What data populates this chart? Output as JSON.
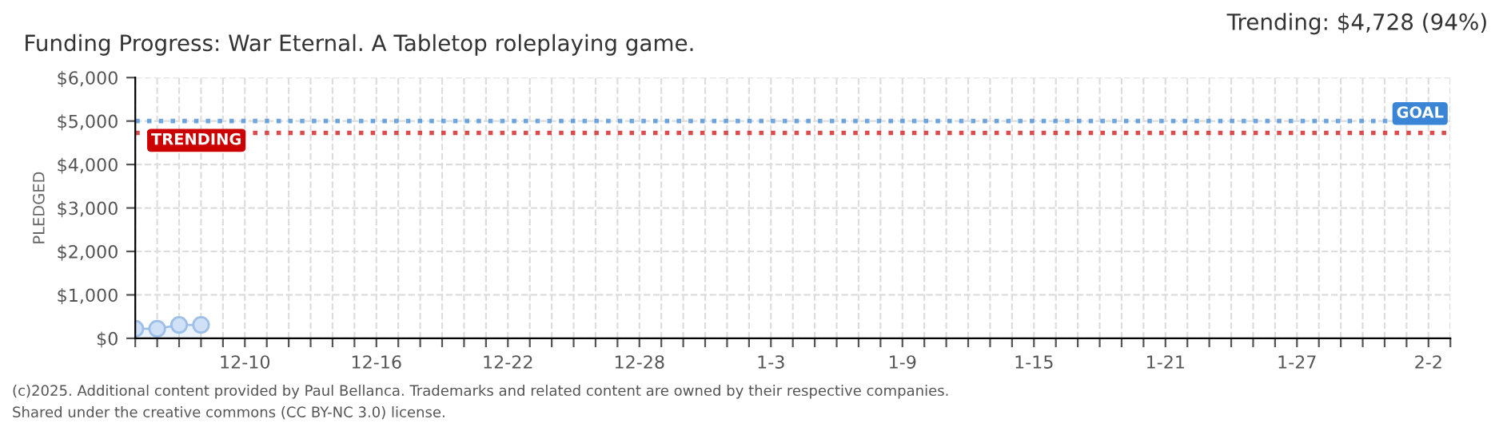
{
  "chart_data": {
    "type": "area",
    "title": "Funding Progress: War Eternal. A Tabletop roleplaying game.",
    "ylabel": "PLEDGED",
    "x": [
      "2024-12-05",
      "2024-12-06",
      "2024-12-07",
      "2024-12-08"
    ],
    "series": [
      {
        "color": "#9dbfe8",
        "values": [
          220,
          220,
          310,
          310
        ]
      }
    ],
    "marker": "circle",
    "xlim": [
      "2024-12-05",
      "2025-02-03"
    ],
    "xticks": [
      {
        "value": "2024-12-05",
        "label": null
      },
      {
        "value": "2024-12-06",
        "label": null
      },
      {
        "value": "2024-12-07",
        "label": null
      },
      {
        "value": "2024-12-08",
        "label": null
      },
      {
        "value": "2024-12-09",
        "label": null
      },
      {
        "value": "2024-12-10",
        "label": "12-10"
      },
      {
        "value": "2024-12-11",
        "label": null
      },
      {
        "value": "2024-12-12",
        "label": null
      },
      {
        "value": "2024-12-13",
        "label": null
      },
      {
        "value": "2024-12-14",
        "label": null
      },
      {
        "value": "2024-12-15",
        "label": null
      },
      {
        "value": "2024-12-16",
        "label": "12-16"
      },
      {
        "value": "2024-12-17",
        "label": null
      },
      {
        "value": "2024-12-18",
        "label": null
      },
      {
        "value": "2024-12-19",
        "label": null
      },
      {
        "value": "2024-12-20",
        "label": null
      },
      {
        "value": "2024-12-21",
        "label": null
      },
      {
        "value": "2024-12-22",
        "label": "12-22"
      },
      {
        "value": "2024-12-23",
        "label": null
      },
      {
        "value": "2024-12-24",
        "label": null
      },
      {
        "value": "2024-12-25",
        "label": null
      },
      {
        "value": "2024-12-26",
        "label": null
      },
      {
        "value": "2024-12-27",
        "label": null
      },
      {
        "value": "2024-12-28",
        "label": "12-28"
      },
      {
        "value": "2024-12-29",
        "label": null
      },
      {
        "value": "2024-12-30",
        "label": null
      },
      {
        "value": "2024-12-31",
        "label": null
      },
      {
        "value": "2025-01-01",
        "label": null
      },
      {
        "value": "2025-01-02",
        "label": null
      },
      {
        "value": "2025-01-03",
        "label": "1-3"
      },
      {
        "value": "2025-01-04",
        "label": null
      },
      {
        "value": "2025-01-05",
        "label": null
      },
      {
        "value": "2025-01-06",
        "label": null
      },
      {
        "value": "2025-01-07",
        "label": null
      },
      {
        "value": "2025-01-08",
        "label": null
      },
      {
        "value": "2025-01-09",
        "label": "1-9"
      },
      {
        "value": "2025-01-10",
        "label": null
      },
      {
        "value": "2025-01-11",
        "label": null
      },
      {
        "value": "2025-01-12",
        "label": null
      },
      {
        "value": "2025-01-13",
        "label": null
      },
      {
        "value": "2025-01-14",
        "label": null
      },
      {
        "value": "2025-01-15",
        "label": "1-15"
      },
      {
        "value": "2025-01-16",
        "label": null
      },
      {
        "value": "2025-01-17",
        "label": null
      },
      {
        "value": "2025-01-18",
        "label": null
      },
      {
        "value": "2025-01-19",
        "label": null
      },
      {
        "value": "2025-01-20",
        "label": null
      },
      {
        "value": "2025-01-21",
        "label": "1-21"
      },
      {
        "value": "2025-01-22",
        "label": null
      },
      {
        "value": "2025-01-23",
        "label": null
      },
      {
        "value": "2025-01-24",
        "label": null
      },
      {
        "value": "2025-01-25",
        "label": null
      },
      {
        "value": "2025-01-26",
        "label": null
      },
      {
        "value": "2025-01-27",
        "label": "1-27"
      },
      {
        "value": "2025-01-28",
        "label": null
      },
      {
        "value": "2025-01-29",
        "label": null
      },
      {
        "value": "2025-01-30",
        "label": null
      },
      {
        "value": "2025-01-31",
        "label": null
      },
      {
        "value": "2025-02-01",
        "label": null
      },
      {
        "value": "2025-02-02",
        "label": "2-2"
      },
      {
        "value": "2025-02-03",
        "label": null
      }
    ],
    "ylim": [
      0,
      6000
    ],
    "yticks": [
      {
        "value": 0,
        "label": "$0"
      },
      {
        "value": 1000,
        "label": "$1,000"
      },
      {
        "value": 2000,
        "label": "$2,000"
      },
      {
        "value": 3000,
        "label": "$3,000"
      },
      {
        "value": 4000,
        "label": "$4,000"
      },
      {
        "value": 5000,
        "label": "$5,000"
      },
      {
        "value": 6000,
        "label": "$6,000"
      }
    ],
    "grid": true,
    "ref_lines": [
      {
        "axis": "y",
        "value": 5000,
        "label": "GOAL",
        "color": "#3a85d6",
        "line_style": "dotted"
      },
      {
        "axis": "y",
        "value": 4728,
        "label": "TRENDING",
        "color": "#cc0000",
        "line_style": "dotted"
      }
    ],
    "annotations": [
      "Trending: $4,728 (94%)",
      "(c)2025. Additional content provided by Paul Bellanca. Trademarks and related content are owned by their respective companies.",
      "Shared under the creative commons (CC BY-NC 3.0) license."
    ]
  }
}
